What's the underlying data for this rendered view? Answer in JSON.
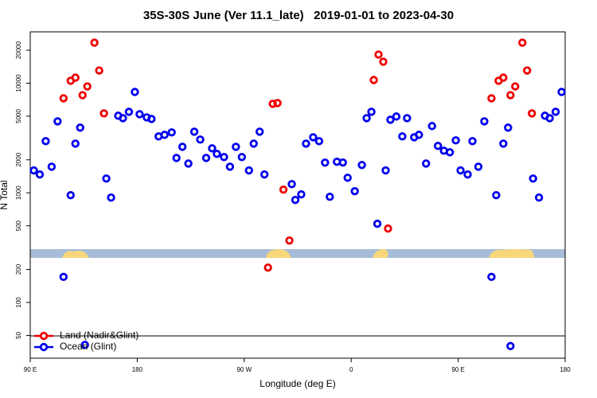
{
  "chart_data": {
    "type": "scatter",
    "title": "35S-30S June (Ver 11.1_late)   2019-01-01 to 2023-04-30",
    "xlabel": "Longitude (deg E)",
    "ylabel": "N Total",
    "xlim": [
      90,
      540
    ],
    "ylim": [
      31,
      29400
    ],
    "yscale": "log",
    "xticks": [
      {
        "value": 90,
        "label": "90 E"
      },
      {
        "value": 180,
        "label": "180"
      },
      {
        "value": 270,
        "label": "90 W"
      },
      {
        "value": 360,
        "label": "0"
      },
      {
        "value": 450,
        "label": "90 E"
      },
      {
        "value": 540,
        "label": "180"
      }
    ],
    "yticks": [
      50,
      100,
      200,
      500,
      1000,
      2000,
      5000,
      10000,
      20000
    ],
    "legend": "bottom-left",
    "series": [
      {
        "name": "Land (Nadir&Glint)",
        "color": "#ee0000",
        "x": [
          118,
          124,
          128,
          134,
          138,
          144,
          148,
          152,
          290,
          294,
          298,
          303,
          308,
          379,
          383,
          387,
          391,
          478,
          484,
          488,
          494,
          498,
          504,
          508,
          512
        ],
        "values": [
          7280,
          10520,
          11240,
          7780,
          9350,
          23420,
          13060,
          5305,
          208,
          6480,
          6590,
          1069,
          367,
          10690,
          18230,
          15700,
          472,
          7280,
          10520,
          11240,
          7780,
          9350,
          23420,
          13060,
          5305
        ]
      },
      {
        "name": "Ocean (Glint)",
        "color": "#0000ee",
        "x": [
          93,
          98,
          103,
          108,
          113,
          118,
          124,
          128,
          132,
          136,
          154,
          158,
          164,
          168,
          173,
          178,
          182,
          188,
          192,
          198,
          203,
          209,
          213,
          218,
          223,
          228,
          233,
          238,
          243,
          247,
          253,
          258,
          263,
          268,
          274,
          278,
          283,
          287,
          310,
          313,
          318,
          322,
          328,
          333,
          338,
          342,
          348,
          353,
          357,
          363,
          369,
          373,
          377,
          382,
          389,
          393,
          398,
          403,
          407,
          413,
          417,
          423,
          428,
          433,
          438,
          443,
          448,
          452,
          458,
          462,
          467,
          472,
          478,
          482,
          488,
          492,
          494,
          513,
          518,
          523,
          527,
          532,
          537
        ],
        "values": [
          1600,
          1470,
          2960,
          1730,
          4490,
          171,
          951,
          2810,
          3930,
          41,
          1350,
          905,
          5050,
          4800,
          5480,
          8320,
          5210,
          4880,
          4720,
          3270,
          3380,
          3560,
          2080,
          2630,
          1850,
          3610,
          3060,
          2080,
          2545,
          2265,
          2120,
          1730,
          2630,
          2120,
          1600,
          2810,
          3610,
          1470,
          1200,
          861,
          967,
          2810,
          3210,
          2960,
          1885,
          920,
          1920,
          1890,
          1373,
          1034,
          1793,
          4800,
          5480,
          522,
          1600,
          4643,
          4965,
          3270,
          4800,
          3210,
          3380,
          1850,
          4063,
          2676,
          2421,
          2343,
          3008,
          1600,
          1470,
          2960,
          1730,
          4490,
          171,
          951,
          2810,
          3930,
          40,
          1350,
          905,
          5050,
          4800,
          5480,
          8320
        ]
      }
    ]
  }
}
